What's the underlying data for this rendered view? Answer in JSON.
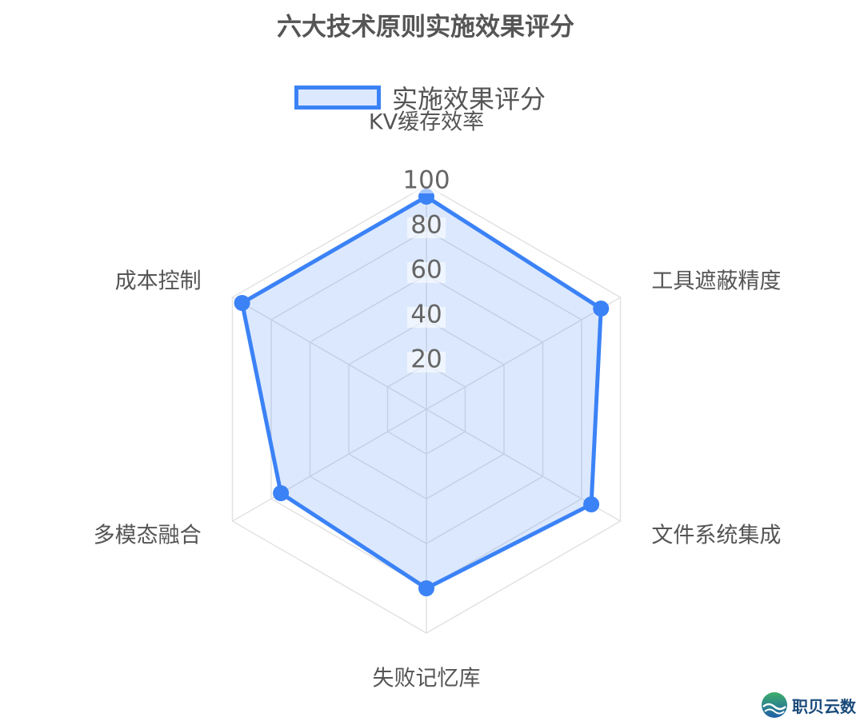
{
  "chart_data": {
    "type": "radar",
    "title": "六大技术原则实施效果评分",
    "legend": {
      "position": "top",
      "label": "实施效果评分"
    },
    "axes": [
      "KV缓存效率",
      "工具遮蔽精度",
      "文件系统集成",
      "失败记忆库",
      "多模态融合",
      "成本控制"
    ],
    "series": [
      {
        "name": "实施效果评分",
        "values": [
          95,
          90,
          85,
          80,
          75,
          95
        ]
      }
    ],
    "range": [
      0,
      100
    ],
    "ticks": [
      20,
      40,
      60,
      80,
      100
    ],
    "grid": true,
    "colors": {
      "line": "#3b82f6",
      "fill": "rgba(59,130,246,0.18)",
      "grid": "#e2e2e2"
    }
  },
  "watermark": {
    "text": "职贝云数",
    "icon": "wave-globe-logo"
  }
}
